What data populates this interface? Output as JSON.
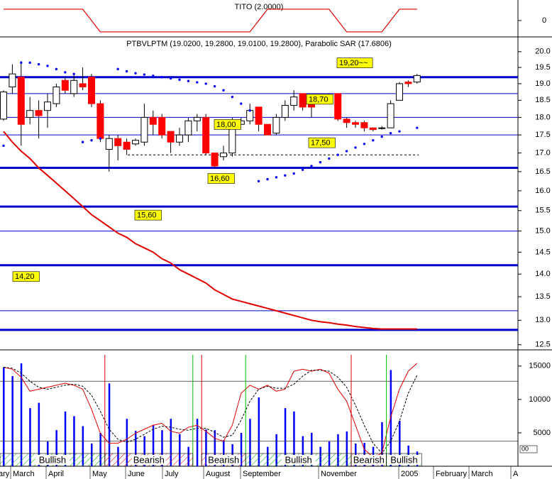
{
  "chart_data": {
    "type": "candlestick",
    "tito": {
      "title": "TITO (2.0000)",
      "values": [
        1,
        1,
        1,
        1,
        1,
        1,
        1,
        1,
        1,
        1,
        0,
        -1,
        -1,
        -1,
        -1,
        -1,
        -1,
        -1,
        -1,
        -1,
        -1,
        -1,
        -1,
        -1,
        -1,
        -1,
        -1,
        -1,
        -1,
        0,
        1,
        1,
        1,
        1,
        1,
        1,
        1,
        1,
        0,
        -1,
        -1,
        -1,
        -1,
        -1,
        0,
        1,
        1,
        1
      ],
      "color": "#e00000",
      "ylim": [
        -1.44,
        1.81
      ],
      "yticks": [
        0
      ]
    },
    "title": "PTBVLPTM (19.0200, 19.2800, 19.0100, 19.2800), Parabolic SAR (17.6806)",
    "log_scale": true,
    "ylim": [
      12.44,
      20.48
    ],
    "yticks": [
      {
        "value": 20,
        "label": "20.0"
      },
      19.5,
      {
        "value": 19,
        "label": "19.0"
      },
      18.5,
      {
        "value": 18,
        "label": "18.0"
      },
      17.5,
      {
        "value": 17,
        "label": "17.0"
      },
      16.5,
      {
        "value": 16,
        "label": "16.0"
      },
      15.5,
      {
        "value": 15,
        "label": "15.0"
      },
      14.5,
      {
        "value": 14,
        "label": "14.0"
      },
      13.5,
      {
        "value": 13,
        "label": "13.0"
      },
      12.5
    ],
    "up_color": "#ffffff",
    "down_color": "#ff0000",
    "open": [
      17.95,
      18.9,
      19.2,
      18.0,
      18.2,
      18.2,
      18.4,
      19.1,
      18.7,
      19.0,
      19.2,
      18.4,
      17.1,
      17.4,
      17.3,
      17.25,
      17.3,
      18.0,
      18.0,
      17.6,
      17.3,
      17.5,
      17.9,
      18.0,
      17.0,
      16.9,
      17.0,
      17.8,
      17.9,
      18.3,
      17.8,
      17.55,
      18.0,
      18.35,
      18.7,
      18.4,
      18.45,
      18.5,
      18.7,
      17.95,
      17.85,
      17.85,
      17.7,
      17.7,
      17.7,
      18.5,
      19.05,
      19.05
    ],
    "high": [
      18.8,
      19.6,
      19.7,
      18.6,
      18.5,
      18.7,
      19.0,
      19.2,
      19.3,
      19.5,
      19.3,
      18.5,
      17.5,
      17.5,
      17.4,
      17.4,
      18.4,
      18.2,
      18.1,
      17.6,
      17.7,
      18.0,
      18.1,
      18.1,
      17.0,
      17.2,
      18.0,
      18.0,
      18.4,
      18.3,
      17.8,
      18.1,
      18.5,
      18.8,
      18.7,
      18.5,
      18.6,
      18.7,
      18.7,
      18.0,
      17.9,
      17.9,
      17.7,
      17.75,
      18.5,
      19.05,
      19.1,
      19.3
    ],
    "low": [
      17.9,
      18.7,
      17.2,
      17.8,
      17.4,
      17.7,
      18.3,
      18.7,
      18.6,
      18.8,
      18.3,
      17.3,
      16.5,
      16.8,
      16.95,
      17.2,
      17.2,
      17.5,
      17.4,
      17.0,
      17.2,
      17.3,
      17.6,
      16.95,
      16.6,
      16.8,
      16.9,
      17.8,
      17.8,
      17.6,
      17.5,
      17.5,
      17.9,
      18.2,
      18.2,
      18.0,
      18.4,
      18.4,
      17.9,
      17.7,
      17.7,
      17.6,
      17.6,
      17.65,
      17.7,
      18.5,
      18.9,
      19.0
    ],
    "close": [
      18.75,
      19.3,
      17.8,
      18.2,
      18.05,
      18.45,
      18.9,
      18.8,
      19.1,
      18.9,
      18.4,
      17.4,
      17.4,
      17.2,
      17.1,
      17.35,
      18.0,
      17.8,
      17.5,
      17.3,
      17.5,
      17.9,
      18.0,
      17.0,
      16.65,
      17.0,
      17.8,
      17.9,
      18.2,
      17.8,
      17.5,
      18.0,
      18.35,
      18.6,
      18.3,
      18.3,
      18.5,
      18.55,
      17.95,
      17.85,
      17.8,
      17.7,
      17.65,
      17.7,
      18.4,
      19.0,
      19.0,
      19.25
    ],
    "sar": {
      "color": "#0000ff",
      "values": [
        17.2,
        null,
        19.65,
        19.65,
        19.6,
        19.55,
        19.45,
        19.35,
        19.3,
        17.3,
        17.35,
        17.4,
        null,
        19.45,
        19.38,
        19.32,
        19.28,
        19.24,
        19.2,
        19.16,
        19.12,
        19.08,
        19.04,
        19.0,
        18.92,
        18.8,
        18.6,
        18.4,
        18.2,
        16.25,
        16.3,
        16.35,
        16.4,
        16.45,
        16.55,
        16.65,
        16.75,
        16.85,
        16.95,
        17.05,
        17.15,
        17.25,
        17.35,
        17.45,
        17.55,
        17.6,
        null,
        17.7
      ]
    },
    "moving_average": {
      "color": "#e00000",
      "values": [
        17.6,
        17.3,
        17.05,
        16.85,
        16.6,
        16.4,
        16.2,
        16.0,
        15.8,
        15.6,
        15.4,
        15.25,
        15.1,
        14.95,
        14.85,
        14.7,
        14.6,
        14.5,
        14.35,
        14.25,
        14.1,
        14.0,
        13.9,
        13.8,
        13.65,
        13.55,
        13.45,
        13.4,
        13.35,
        13.3,
        13.25,
        13.2,
        13.15,
        13.1,
        13.05,
        13.0,
        12.97,
        12.95,
        12.92,
        12.9,
        12.87,
        12.85,
        12.83,
        12.82,
        12.82,
        12.82,
        12.82,
        12.82
      ]
    },
    "levels": [
      {
        "value": 19.2,
        "label": "19,20~~",
        "style": "thick"
      },
      {
        "value": 18.7,
        "label": "18,70",
        "style": "thin"
      },
      {
        "value": 18.0,
        "label": "18,00",
        "style": "thin"
      },
      {
        "value": 17.5,
        "label": "17,50",
        "style": "thin"
      },
      {
        "value": 16.95,
        "style": "dashed"
      },
      {
        "value": 16.6,
        "label": "16,60",
        "style": "thick"
      },
      {
        "value": 15.6,
        "label": "15,60",
        "style": "thick"
      },
      {
        "value": 15.0,
        "style": "thin"
      },
      {
        "value": 14.2,
        "label": "14,20",
        "style": "thick"
      },
      {
        "value": 13.2,
        "style": "thin"
      },
      {
        "value": 12.8,
        "style": "thick"
      }
    ],
    "volume": {
      "color": "#0000ff",
      "values": [
        14800,
        13500,
        15400,
        8700,
        9500,
        3700,
        5400,
        8200,
        7500,
        6000,
        3400,
        5000,
        12400,
        2900,
        7100,
        5300,
        4500,
        6100,
        5400,
        7100,
        4800,
        2900,
        7100,
        5500,
        5400,
        3900,
        3300,
        5000,
        7100,
        10300,
        2900,
        4800,
        8700,
        8200,
        4500,
        5000,
        2900,
        3700,
        4800,
        5200,
        3400,
        3500,
        2900,
        6600,
        14400,
        6800,
        3100,
        2200
      ],
      "ylim": [
        0,
        17000
      ],
      "yticks": [
        5000,
        10000,
        15000
      ],
      "cut_label": "00"
    },
    "stochastic": {
      "ylim": [
        0,
        100
      ],
      "levels": [
        20,
        80
      ],
      "series": [
        {
          "color": "#e00000",
          "values": [
            94,
            92,
            84,
            70,
            72,
            74,
            76,
            78,
            76,
            72,
            52,
            28,
            18,
            18,
            22,
            28,
            32,
            36,
            38,
            30,
            28,
            34,
            36,
            30,
            23,
            20,
            36,
            68,
            76,
            72,
            76,
            70,
            72,
            90,
            92,
            90,
            92,
            88,
            72,
            60,
            36,
            12,
            4,
            8,
            44,
            72,
            90,
            98
          ]
        },
        {
          "color": "#000000",
          "dashed": true,
          "values": [
            94,
            93,
            88,
            80,
            74,
            72,
            74,
            76,
            77,
            75,
            66,
            50,
            32,
            22,
            19,
            22,
            27,
            32,
            35,
            34,
            32,
            31,
            33,
            33,
            29,
            24,
            26,
            41,
            60,
            72,
            75,
            73,
            73,
            77,
            85,
            91,
            91,
            90,
            84,
            74,
            56,
            36,
            18,
            8,
            20,
            40,
            68,
            86
          ]
        }
      ]
    },
    "signals": [
      {
        "index": 12,
        "color": "#e00000"
      },
      {
        "index": 22,
        "color": "#00c000"
      },
      {
        "index": 23,
        "color": "#e00000"
      },
      {
        "index": 28,
        "color": "#00c000"
      },
      {
        "index": 40,
        "color": "#e00000"
      },
      {
        "index": 44,
        "color": "#00c000"
      }
    ],
    "bands": [
      {
        "label": "Bullish",
        "from": 0,
        "to": 12
      },
      {
        "label": "Bearish",
        "from": 12,
        "to": 22
      },
      {
        "label": "Bearish",
        "from": 23,
        "to": 28
      },
      {
        "label": "Bullish",
        "from": 28,
        "to": 40
      },
      {
        "label": "Bearish",
        "from": 40,
        "to": 44
      },
      {
        "label": "Bullish",
        "from": 44,
        "to": 48
      }
    ],
    "x_labels": [
      "ary",
      "March",
      "April",
      "May",
      "June",
      "July",
      "August",
      "September",
      "November",
      "2005",
      "February",
      "March",
      "A"
    ]
  }
}
